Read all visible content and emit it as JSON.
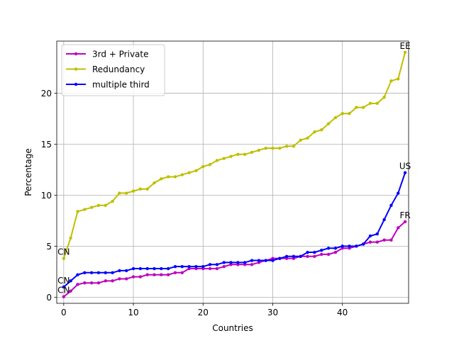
{
  "chart_data": {
    "type": "line",
    "xlabel": "Countries",
    "ylabel": "Percentage",
    "xlim": [
      -1,
      49.5
    ],
    "ylim": [
      -0.6,
      25.1
    ],
    "xticks": [
      0,
      10,
      20,
      30,
      40
    ],
    "yticks": [
      0,
      5,
      10,
      15,
      20
    ],
    "grid": true,
    "legend_position": "upper-left",
    "series": [
      {
        "name": "3rd + Private",
        "color": "#bf00bf",
        "values": [
          0.05,
          0.6,
          1.25,
          1.4,
          1.4,
          1.4,
          1.6,
          1.6,
          1.8,
          1.8,
          2.0,
          2.0,
          2.2,
          2.2,
          2.2,
          2.2,
          2.4,
          2.4,
          2.8,
          2.8,
          2.8,
          2.8,
          2.8,
          3.0,
          3.2,
          3.2,
          3.2,
          3.2,
          3.4,
          3.6,
          3.8,
          3.8,
          3.8,
          3.8,
          4.0,
          4.0,
          4.0,
          4.2,
          4.2,
          4.4,
          4.8,
          4.8,
          5.0,
          5.2,
          5.4,
          5.4,
          5.6,
          5.6,
          6.8,
          7.4
        ]
      },
      {
        "name": "Redundancy",
        "color": "#bfbf00",
        "values": [
          3.8,
          5.8,
          8.4,
          8.6,
          8.8,
          9.0,
          9.0,
          9.4,
          10.2,
          10.2,
          10.4,
          10.6,
          10.6,
          11.2,
          11.6,
          11.8,
          11.8,
          12.0,
          12.2,
          12.4,
          12.8,
          13.0,
          13.4,
          13.6,
          13.8,
          14.0,
          14.0,
          14.2,
          14.4,
          14.6,
          14.6,
          14.6,
          14.8,
          14.8,
          15.4,
          15.6,
          16.2,
          16.4,
          17.0,
          17.6,
          18.0,
          18.0,
          18.6,
          18.6,
          19.0,
          19.0,
          19.6,
          21.2,
          21.4,
          24.0
        ]
      },
      {
        "name": "multiple third",
        "color": "#0000ff",
        "values": [
          1.0,
          1.6,
          2.2,
          2.4,
          2.4,
          2.4,
          2.4,
          2.4,
          2.6,
          2.6,
          2.8,
          2.8,
          2.8,
          2.8,
          2.8,
          2.8,
          3.0,
          3.0,
          3.0,
          3.0,
          3.0,
          3.2,
          3.2,
          3.4,
          3.4,
          3.4,
          3.4,
          3.6,
          3.6,
          3.6,
          3.6,
          3.8,
          4.0,
          4.0,
          4.0,
          4.4,
          4.4,
          4.6,
          4.8,
          4.8,
          5.0,
          5.0,
          5.0,
          5.2,
          6.0,
          6.2,
          7.6,
          9.0,
          10.2,
          12.2
        ]
      }
    ],
    "annotations": [
      {
        "text": "CN",
        "x": 0,
        "y": 3.8
      },
      {
        "text": "CN",
        "x": 0,
        "y": 1.0
      },
      {
        "text": "CN",
        "x": 0,
        "y": 0.05
      },
      {
        "text": "EE",
        "x": 49,
        "y": 24.0
      },
      {
        "text": "US",
        "x": 49,
        "y": 12.2
      },
      {
        "text": "FR",
        "x": 49,
        "y": 7.4
      }
    ]
  }
}
